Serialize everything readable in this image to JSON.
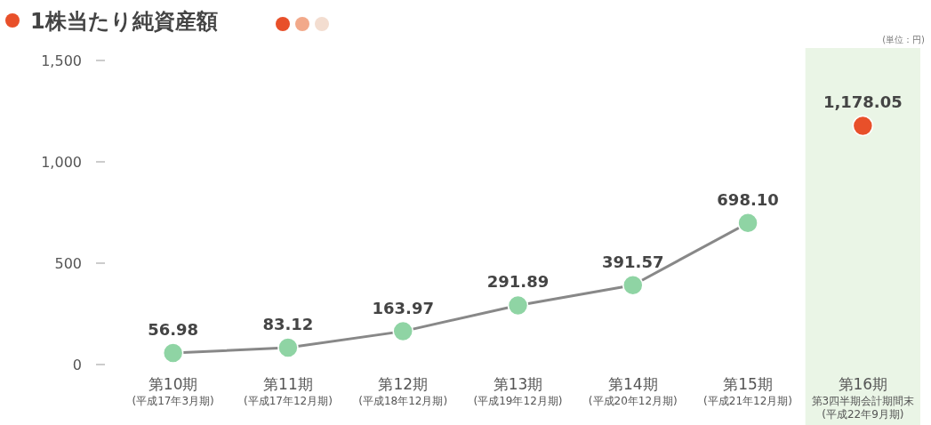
{
  "chart_data": {
    "type": "line",
    "title": "1株当たり純資産額",
    "annotations": [
      "(単位：円)"
    ],
    "categories": [
      "第10期(平成17年3月期)",
      "第11期(平成17年12月期)",
      "第12期(平成18年12月期)",
      "第13期(平成19年12月期)",
      "第14期(平成20年12月期)",
      "第15期(平成21年12月期)",
      "第16期第3四半期会計期間末(平成22年9月期)"
    ],
    "series": [
      {
        "type": "line",
        "color": "#8fd4a4",
        "values": [
          56.98,
          83.12,
          163.97,
          291.89,
          391.57,
          698.1,
          null
        ],
        "value_labels": [
          "56.98",
          "83.12",
          "163.97",
          "291.89",
          "391.57",
          "698.10",
          null
        ]
      },
      {
        "type": "scatter",
        "color": "#e8502a",
        "values": [
          null,
          null,
          null,
          null,
          null,
          null,
          1178.05
        ],
        "value_labels": [
          null,
          null,
          null,
          null,
          null,
          null,
          "1,178.05"
        ]
      }
    ],
    "bands": [
      {
        "axis": "x",
        "from": "第16期第3四半期会計期間末(平成22年9月期)",
        "to": "第16期第3四半期会計期間末(平成22年9月期)",
        "color": "#eaf5e6"
      }
    ],
    "ylim": [
      0,
      1500
    ],
    "yticks": [
      0,
      500,
      {
        "value": 1000,
        "label": "1,000"
      },
      {
        "value": 1500,
        "label": "1,500"
      }
    ],
    "marker": "circle",
    "grid": false
  }
}
